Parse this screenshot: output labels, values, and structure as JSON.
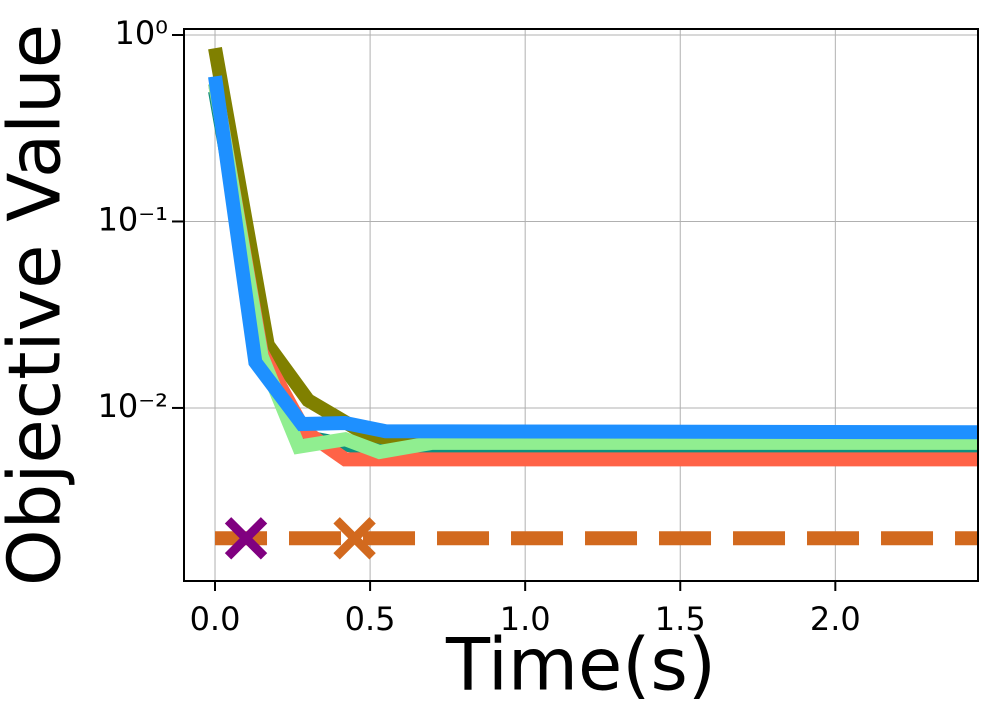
{
  "chart_data": {
    "type": "line",
    "xlabel": "Time(s)",
    "ylabel": "Objective Value",
    "xlim": [
      -0.1,
      2.46
    ],
    "ylim": [
      0.00118,
      1.077
    ],
    "yscale": "log",
    "grid": true,
    "xticks": [
      {
        "value": 0,
        "label": "0.0"
      },
      {
        "value": 0.5,
        "label": "0.5"
      },
      {
        "value": 1,
        "label": "1.0"
      },
      {
        "value": 1.5,
        "label": "1.5"
      },
      {
        "value": 2,
        "label": "2.0"
      }
    ],
    "yticks": [
      {
        "value": 1,
        "label": "10⁰"
      },
      {
        "value": 0.1,
        "label": "10⁻¹"
      },
      {
        "value": 0.01,
        "label": "10⁻²"
      }
    ],
    "series": [
      {
        "color": "#808000",
        "x": [
          0,
          0.17,
          0.3,
          0.5,
          0.6,
          2.5
        ],
        "values": [
          0.85,
          0.0218,
          0.011,
          0.007,
          0.0068,
          0.0066
        ]
      },
      {
        "color": "#0e8f80",
        "x": [
          0,
          0.15,
          0.29,
          0.55,
          2.5
        ],
        "values": [
          0.5,
          0.02,
          0.007,
          0.0058,
          0.0058
        ]
      },
      {
        "color": "#ff6347",
        "x": [
          0,
          0.15,
          0.29,
          0.42,
          2.5
        ],
        "values": [
          0.55,
          0.02,
          0.0075,
          0.0053,
          0.0053
        ]
      },
      {
        "color": "#90ee90",
        "x": [
          0,
          0.15,
          0.27,
          0.42,
          0.53,
          0.7,
          2.5
        ],
        "values": [
          0.55,
          0.019,
          0.0062,
          0.0068,
          0.0058,
          0.0065,
          0.0065
        ]
      },
      {
        "color": "#1e90ff",
        "x": [
          0,
          0.13,
          0.28,
          0.42,
          0.55,
          2.5
        ],
        "values": [
          0.6,
          0.0176,
          0.0082,
          0.0083,
          0.0075,
          0.0074
        ]
      },
      {
        "color": "#d2691e",
        "linestyle": "dashed",
        "x": [
          0,
          2.5
        ],
        "values": [
          0.002,
          0.002
        ]
      }
    ],
    "markers": [
      {
        "color": "#800080",
        "x": 0.1,
        "value": 0.002
      },
      {
        "color": "#d2691e",
        "x": 0.45,
        "value": 0.002
      }
    ]
  }
}
